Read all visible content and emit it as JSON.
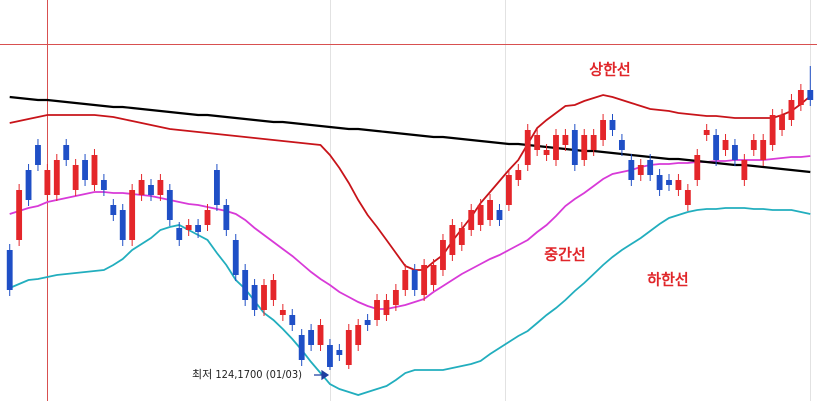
{
  "chart_data": {
    "type": "candlestick",
    "categories": [
      null,
      null,
      null,
      null,
      null,
      null,
      null,
      null,
      null,
      null,
      null,
      null,
      null,
      null,
      null,
      null,
      null,
      null,
      null,
      null,
      null,
      null,
      null,
      null,
      null,
      null,
      null,
      null,
      null,
      null,
      null,
      null,
      null,
      null,
      null,
      null,
      null,
      null,
      null,
      null,
      null,
      null,
      null,
      null,
      null,
      null,
      null,
      null,
      null,
      null,
      null,
      null,
      null,
      null,
      null,
      null,
      null,
      null,
      null,
      null,
      null,
      null,
      null,
      null,
      null,
      null,
      null,
      null,
      null,
      null,
      null,
      null,
      null,
      null,
      null,
      null,
      null,
      null,
      null,
      null,
      null,
      null,
      null,
      null,
      null,
      null
    ],
    "open": [
      125.37,
      125.47,
      126.17,
      126.42,
      125.92,
      125.92,
      126.42,
      125.97,
      126.27,
      126.02,
      126.07,
      125.82,
      125.77,
      125.47,
      125.92,
      126.02,
      125.92,
      125.97,
      125.59,
      125.57,
      125.62,
      125.62,
      126.17,
      125.82,
      125.47,
      125.17,
      125.02,
      124.77,
      124.87,
      124.72,
      124.72,
      124.52,
      124.57,
      124.42,
      124.42,
      124.37,
      124.22,
      124.42,
      124.67,
      124.67,
      124.72,
      124.82,
      124.97,
      125.17,
      124.92,
      125.02,
      125.17,
      125.32,
      125.42,
      125.57,
      125.62,
      125.67,
      125.77,
      125.82,
      126.07,
      126.22,
      126.37,
      126.32,
      126.27,
      126.42,
      126.57,
      126.27,
      126.37,
      126.47,
      126.67,
      126.47,
      126.27,
      126.12,
      126.27,
      126.12,
      126.07,
      125.97,
      125.82,
      126.07,
      126.52,
      126.52,
      126.37,
      126.42,
      126.07,
      126.37,
      126.27,
      126.42,
      126.57,
      126.67,
      126.82,
      126.97
    ],
    "high": [
      125.43,
      126.03,
      126.23,
      126.48,
      126.23,
      126.33,
      126.48,
      126.28,
      126.33,
      126.38,
      126.13,
      125.88,
      125.83,
      126.03,
      126.13,
      126.08,
      126.13,
      126.03,
      125.65,
      125.68,
      125.68,
      125.83,
      126.23,
      125.88,
      125.53,
      125.23,
      125.08,
      125.08,
      125.13,
      124.83,
      124.78,
      124.58,
      124.63,
      124.68,
      124.48,
      124.43,
      124.63,
      124.68,
      124.73,
      124.93,
      124.93,
      125.03,
      125.23,
      125.23,
      125.28,
      125.28,
      125.53,
      125.68,
      125.65,
      125.83,
      125.88,
      125.93,
      125.83,
      126.18,
      126.23,
      126.63,
      126.58,
      126.43,
      126.58,
      126.58,
      126.63,
      126.58,
      126.58,
      126.73,
      126.73,
      126.53,
      126.33,
      126.28,
      126.33,
      126.18,
      126.13,
      126.13,
      126.03,
      126.38,
      126.63,
      126.58,
      126.53,
      126.48,
      126.33,
      126.53,
      126.53,
      126.78,
      126.78,
      126.93,
      127.03,
      127.21
    ],
    "low": [
      124.91,
      125.41,
      125.81,
      126.16,
      125.86,
      125.86,
      126.21,
      125.91,
      126.01,
      125.96,
      125.91,
      125.66,
      125.41,
      125.41,
      125.86,
      125.86,
      125.86,
      125.61,
      125.41,
      125.51,
      125.49,
      125.56,
      125.76,
      125.51,
      125.06,
      124.81,
      124.71,
      124.71,
      124.81,
      124.66,
      124.56,
      124.21,
      124.36,
      124.36,
      124.17,
      124.26,
      124.18,
      124.36,
      124.56,
      124.61,
      124.66,
      124.76,
      124.91,
      124.91,
      124.86,
      124.96,
      125.11,
      125.26,
      125.36,
      125.51,
      125.56,
      125.61,
      125.61,
      125.76,
      126.01,
      126.16,
      126.31,
      126.26,
      126.21,
      126.36,
      126.16,
      126.21,
      126.31,
      126.41,
      126.51,
      126.31,
      126.01,
      126.06,
      126.06,
      125.91,
      125.96,
      125.91,
      125.76,
      126.01,
      126.46,
      126.21,
      126.31,
      126.21,
      126.01,
      126.31,
      126.21,
      126.36,
      126.51,
      126.61,
      126.76,
      126.81
    ],
    "close": [
      124.97,
      125.97,
      125.87,
      126.22,
      126.17,
      126.27,
      126.27,
      126.22,
      126.07,
      126.32,
      125.97,
      125.72,
      125.47,
      125.97,
      126.07,
      125.92,
      126.07,
      125.67,
      125.47,
      125.62,
      125.55,
      125.77,
      125.82,
      125.57,
      125.12,
      124.87,
      124.77,
      125.02,
      125.07,
      124.77,
      124.62,
      124.27,
      124.42,
      124.62,
      124.2,
      124.32,
      124.57,
      124.62,
      124.62,
      124.87,
      124.87,
      124.97,
      125.17,
      124.97,
      125.22,
      125.22,
      125.47,
      125.62,
      125.59,
      125.77,
      125.82,
      125.87,
      125.67,
      126.12,
      126.17,
      126.57,
      126.52,
      126.37,
      126.52,
      126.52,
      126.22,
      126.52,
      126.52,
      126.67,
      126.57,
      126.37,
      126.07,
      126.22,
      126.12,
      125.97,
      126.02,
      126.07,
      125.97,
      126.32,
      126.57,
      126.27,
      126.47,
      126.27,
      126.27,
      126.47,
      126.47,
      126.72,
      126.72,
      126.87,
      126.97,
      126.87
    ],
    "up_color": "#e4262a",
    "down_color": "#1f4fc6",
    "series": [
      {
        "name": "상한선",
        "color": "#c8141a",
        "values": [
          126.64,
          126.66,
          126.68,
          126.7,
          126.72,
          126.72,
          126.72,
          126.72,
          126.72,
          126.72,
          126.71,
          126.7,
          126.68,
          126.66,
          126.64,
          126.62,
          126.6,
          126.58,
          126.57,
          126.56,
          126.55,
          126.54,
          126.53,
          126.52,
          126.51,
          126.5,
          126.49,
          126.48,
          126.47,
          126.46,
          126.45,
          126.44,
          126.43,
          126.42,
          126.32,
          126.19,
          126.04,
          125.87,
          125.72,
          125.6,
          125.47,
          125.34,
          125.21,
          125.17,
          125.17,
          125.25,
          125.32,
          125.46,
          125.58,
          125.7,
          125.84,
          125.95,
          126.06,
          126.17,
          126.27,
          126.43,
          126.59,
          126.67,
          126.74,
          126.81,
          126.82,
          126.86,
          126.89,
          126.92,
          126.9,
          126.87,
          126.84,
          126.81,
          126.78,
          126.77,
          126.76,
          126.74,
          126.73,
          126.72,
          126.71,
          126.71,
          126.7,
          126.69,
          126.69,
          126.69,
          126.69,
          126.69,
          126.72,
          126.76,
          126.83,
          126.91
        ]
      },
      {
        "name": "중간선",
        "color": "#d83ad8",
        "values": [
          125.73,
          125.76,
          125.79,
          125.81,
          125.85,
          125.87,
          125.89,
          125.91,
          125.93,
          125.95,
          125.95,
          125.94,
          125.94,
          125.93,
          125.92,
          125.91,
          125.89,
          125.87,
          125.85,
          125.83,
          125.82,
          125.8,
          125.78,
          125.76,
          125.73,
          125.67,
          125.59,
          125.52,
          125.45,
          125.38,
          125.31,
          125.23,
          125.15,
          125.08,
          125.02,
          124.95,
          124.9,
          124.85,
          124.81,
          124.78,
          124.78,
          124.8,
          124.82,
          124.85,
          124.88,
          124.95,
          125.01,
          125.07,
          125.13,
          125.18,
          125.23,
          125.28,
          125.32,
          125.37,
          125.42,
          125.47,
          125.55,
          125.62,
          125.71,
          125.81,
          125.88,
          125.94,
          126.01,
          126.08,
          126.13,
          126.15,
          126.17,
          126.2,
          126.22,
          126.23,
          126.23,
          126.24,
          126.24,
          126.25,
          126.25,
          126.26,
          126.26,
          126.27,
          126.27,
          126.27,
          126.27,
          126.28,
          126.29,
          126.3,
          126.3,
          126.31
        ]
      },
      {
        "name": "하한선",
        "color": "#22aebe",
        "values": [
          124.99,
          125.03,
          125.07,
          125.08,
          125.1,
          125.12,
          125.13,
          125.14,
          125.15,
          125.16,
          125.17,
          125.22,
          125.28,
          125.37,
          125.43,
          125.49,
          125.57,
          125.6,
          125.62,
          125.57,
          125.52,
          125.47,
          125.34,
          125.22,
          125.07,
          124.98,
          124.86,
          124.74,
          124.67,
          124.58,
          124.48,
          124.37,
          124.25,
          124.14,
          124.03,
          123.98,
          123.95,
          123.92,
          123.95,
          123.98,
          124.01,
          124.07,
          124.14,
          124.17,
          124.17,
          124.17,
          124.17,
          124.19,
          124.21,
          124.23,
          124.26,
          124.33,
          124.39,
          124.45,
          124.51,
          124.56,
          124.64,
          124.72,
          124.79,
          124.87,
          124.96,
          125.04,
          125.13,
          125.22,
          125.3,
          125.37,
          125.43,
          125.49,
          125.56,
          125.63,
          125.69,
          125.72,
          125.75,
          125.77,
          125.78,
          125.78,
          125.79,
          125.79,
          125.79,
          125.78,
          125.78,
          125.77,
          125.77,
          125.77,
          125.75,
          125.73
        ]
      },
      {
        "color": "#000000",
        "values": [
          126.9,
          126.89,
          126.88,
          126.87,
          126.87,
          126.86,
          126.85,
          126.84,
          126.83,
          126.82,
          126.81,
          126.8,
          126.8,
          126.79,
          126.78,
          126.77,
          126.76,
          126.75,
          126.74,
          126.73,
          126.72,
          126.72,
          126.71,
          126.7,
          126.69,
          126.68,
          126.67,
          126.66,
          126.65,
          126.65,
          126.64,
          126.63,
          126.62,
          126.61,
          126.6,
          126.59,
          126.58,
          126.58,
          126.57,
          126.56,
          126.55,
          126.54,
          126.53,
          126.52,
          126.51,
          126.5,
          126.5,
          126.49,
          126.48,
          126.47,
          126.46,
          126.45,
          126.44,
          126.43,
          126.43,
          126.42,
          126.41,
          126.4,
          126.39,
          126.38,
          126.37,
          126.36,
          126.36,
          126.35,
          126.34,
          126.33,
          126.32,
          126.31,
          126.3,
          126.29,
          126.28,
          126.28,
          126.27,
          126.26,
          126.25,
          126.24,
          126.23,
          126.22,
          126.22,
          126.21,
          126.2,
          126.19,
          126.18,
          126.17,
          126.16,
          126.15
        ]
      }
    ],
    "annotation": "최저 124,1700 (01/03)",
    "ylim": [
      123.86,
      127.87
    ]
  }
}
